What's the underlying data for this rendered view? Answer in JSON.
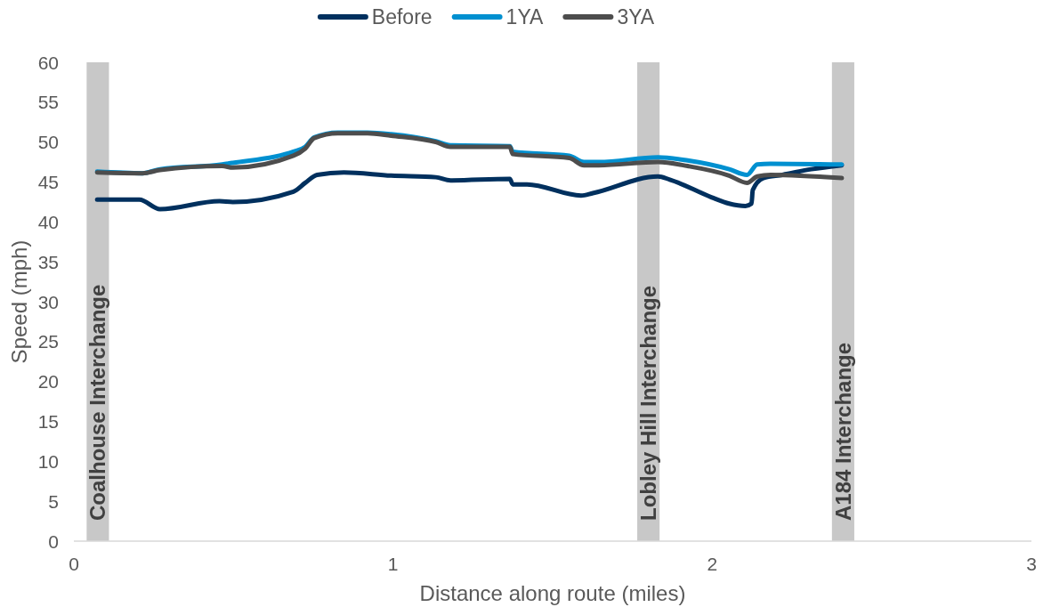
{
  "chart_data": {
    "type": "line",
    "xlabel": "Distance along route (miles)",
    "ylabel": "Speed (mph)",
    "xlim": [
      0,
      3
    ],
    "xticks": [
      0,
      1,
      2,
      3
    ],
    "ylim": [
      0,
      60
    ],
    "yticks": [
      0,
      5,
      10,
      15,
      20,
      25,
      30,
      35,
      40,
      45,
      50,
      55,
      60
    ],
    "legend": "top",
    "bands": [
      {
        "axis": "x",
        "from": 0.04,
        "to": 0.11,
        "label": "Coalhouse Interchange",
        "color": "#c8c8c8"
      },
      {
        "axis": "x",
        "from": 1.765,
        "to": 1.835,
        "label": "Lobley Hill Interchange",
        "color": "#c8c8c8"
      },
      {
        "axis": "x",
        "from": 2.375,
        "to": 2.445,
        "label": "A184 Interchange",
        "color": "#c8c8c8"
      }
    ],
    "series": [
      {
        "name": "Before",
        "color": "#00305e",
        "x": [
          0.073,
          0.205,
          0.27,
          0.456,
          0.498,
          0.688,
          0.725,
          0.762,
          0.846,
          0.994,
          1.134,
          1.18,
          1.366,
          1.375,
          1.42,
          1.589,
          1.626,
          1.83,
          1.867,
          1.997,
          2.053,
          2.104,
          2.123,
          2.127,
          2.16,
          2.22,
          2.31,
          2.406
        ],
        "values": [
          42.8,
          42.8,
          41.6,
          42.6,
          42.5,
          43.8,
          44.9,
          45.9,
          46.2,
          45.8,
          45.6,
          45.2,
          45.4,
          44.7,
          44.7,
          43.3,
          43.6,
          45.7,
          45.3,
          43.1,
          42.3,
          42.0,
          42.3,
          44.0,
          45.5,
          45.9,
          46.6,
          47.1
        ]
      },
      {
        "name": "1YA",
        "color": "#0090d0",
        "x": [
          0.073,
          0.215,
          0.27,
          0.465,
          0.498,
          0.688,
          0.725,
          0.753,
          0.827,
          0.92,
          0.994,
          1.134,
          1.18,
          1.366,
          1.375,
          1.552,
          1.598,
          1.645,
          1.83,
          1.923,
          2.053,
          2.109,
          2.141,
          2.183,
          2.406
        ],
        "values": [
          46.3,
          46.1,
          46.6,
          47.2,
          47.4,
          48.8,
          49.4,
          50.6,
          51.2,
          51.2,
          51.0,
          50.1,
          49.6,
          49.5,
          48.8,
          48.3,
          47.5,
          47.5,
          48.1,
          47.7,
          46.6,
          45.9,
          47.2,
          47.3,
          47.2
        ]
      },
      {
        "name": "3YA",
        "color": "#4d4d4d",
        "x": [
          0.073,
          0.215,
          0.27,
          0.465,
          0.498,
          0.688,
          0.725,
          0.753,
          0.827,
          0.92,
          0.994,
          1.134,
          1.18,
          1.366,
          1.375,
          1.552,
          1.598,
          1.645,
          1.83,
          1.923,
          2.053,
          2.109,
          2.141,
          2.183,
          2.406
        ],
        "values": [
          46.2,
          46.1,
          46.5,
          47.0,
          46.8,
          48.3,
          49.2,
          50.5,
          51.1,
          51.1,
          50.8,
          50.0,
          49.4,
          49.4,
          48.5,
          48.0,
          47.1,
          47.1,
          47.5,
          47.0,
          45.8,
          44.9,
          45.7,
          45.9,
          45.5
        ]
      }
    ]
  }
}
